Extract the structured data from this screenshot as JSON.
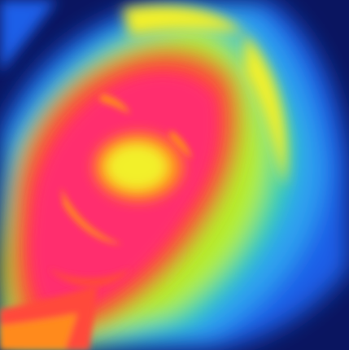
{
  "image": {
    "kind": "thermal-image",
    "subject": "face",
    "palette": {
      "background": "#0a1560",
      "cold": "#1e5ee8",
      "cool": "#2fa0f0",
      "mid": "#35d6a0",
      "warm": "#b6ee2c",
      "warmer": "#f2f02a",
      "hot": "#ff8a1a",
      "hotter": "#ff4a3a",
      "hottest": "#ff2f6e"
    }
  }
}
